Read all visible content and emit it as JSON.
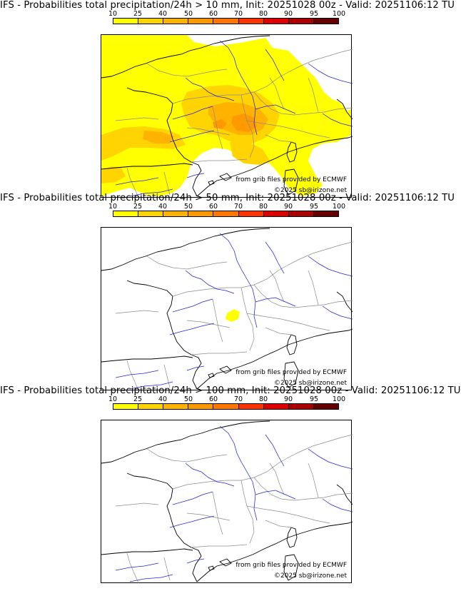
{
  "legend": {
    "ticks": [
      "10",
      "25",
      "40",
      "50",
      "60",
      "70",
      "80",
      "90",
      "95",
      "100"
    ],
    "colors": [
      "#ffff00",
      "#ffd400",
      "#ffb300",
      "#ff9900",
      "#ff7700",
      "#ff3300",
      "#dd0000",
      "#aa0000",
      "#660000"
    ]
  },
  "panels": [
    {
      "title": "IFS - Probabilities total precipitation/24h > 10 mm, Init: 20251028 00z - Valid: 20251106:12 TU",
      "source_credit": "from grib files provided by ECMWF",
      "copyright": "©2025 sb@irizone.net"
    },
    {
      "title": "IFS - Probabilities total precipitation/24h > 50 mm, Init: 20251028 00z - Valid: 20251106:12 TU",
      "source_credit": "from grib files provided by ECMWF",
      "copyright": "©2025 sb@irizone.net"
    },
    {
      "title": "IFS - Probabilities total precipitation/24h > 100 mm, Init: 20251028 00z - Valid: 20251106:12 TU",
      "source_credit": "from grib files provided by ECMWF",
      "copyright": "©2025 sb@irizone.net"
    }
  ],
  "colors": {
    "coastline": "#000000",
    "borders": "#999999",
    "rivers": "#1f1fcf",
    "prob_low": "#ffff00",
    "prob_mid": "#ffd400",
    "prob_high": "#ffb300",
    "prob_top": "#ff9900"
  }
}
